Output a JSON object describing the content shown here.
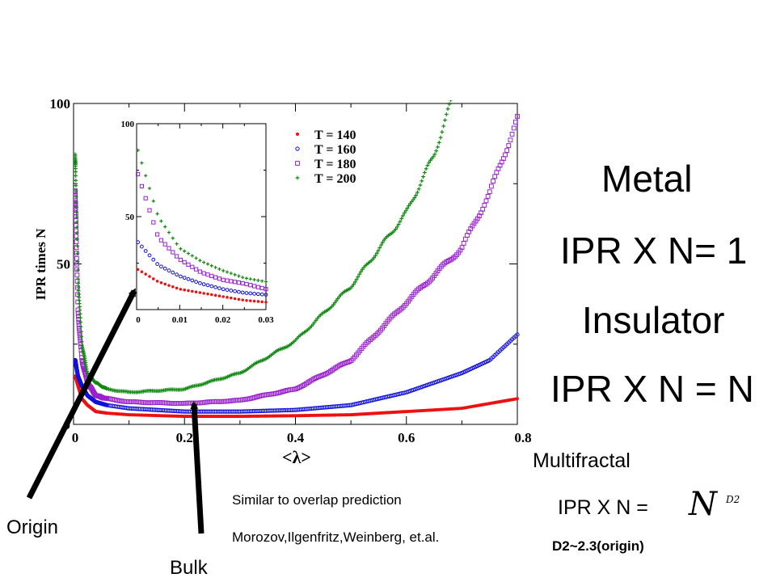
{
  "side_text": {
    "metal": "Metal",
    "metal_formula": "IPR X N= 1",
    "insulator": "Insulator",
    "insulator_formula": "IPR X N = N",
    "multifractal": "Multifractal",
    "multifractal_formula": "IPR X N =",
    "formula_base": "N",
    "formula_exponent": "D2",
    "d2_note": "D2~2.3(origin)",
    "overlap_line1": "Similar to overlap prediction",
    "overlap_line2": "Morozov,Ilgenfritz,Weinberg, et.al.",
    "origin_label": "Origin",
    "bulk_label": "Bulk"
  },
  "colors": {
    "T140": "#ee1111",
    "T160": "#1111dd",
    "T180": "#9922cc",
    "T200": "#118811"
  },
  "chart_data": [
    {
      "type": "scatter",
      "xlabel": "<λ>",
      "ylabel": "IPR times N",
      "xlim": [
        0,
        0.8
      ],
      "ylim": [
        0,
        100
      ],
      "x_ticks": [
        "0",
        "0.2",
        "0.4",
        "0.6",
        "0.8"
      ],
      "y_ticks": [
        "0",
        "50",
        "100"
      ],
      "legend_position": "inset top-right",
      "series": [
        {
          "name": "T = 140",
          "marker": "filled-circle",
          "color": "#ee1111",
          "points": [
            [
              0.003,
              15
            ],
            [
              0.008,
              12
            ],
            [
              0.015,
              8
            ],
            [
              0.025,
              6
            ],
            [
              0.04,
              4
            ],
            [
              0.06,
              3.5
            ],
            [
              0.1,
              3
            ],
            [
              0.2,
              2.5
            ],
            [
              0.3,
              2.5
            ],
            [
              0.4,
              2.7
            ],
            [
              0.5,
              3
            ],
            [
              0.6,
              4
            ],
            [
              0.7,
              5
            ],
            [
              0.8,
              8
            ]
          ]
        },
        {
          "name": "T = 160",
          "marker": "open-circle",
          "color": "#1111dd",
          "points": [
            [
              0.003,
              20
            ],
            [
              0.008,
              15
            ],
            [
              0.015,
              12
            ],
            [
              0.025,
              9
            ],
            [
              0.04,
              7
            ],
            [
              0.06,
              6
            ],
            [
              0.1,
              5
            ],
            [
              0.2,
              4
            ],
            [
              0.3,
              4
            ],
            [
              0.4,
              4.5
            ],
            [
              0.5,
              6
            ],
            [
              0.6,
              10
            ],
            [
              0.7,
              16
            ],
            [
              0.75,
              20
            ],
            [
              0.8,
              28
            ]
          ]
        },
        {
          "name": "T = 180",
          "marker": "open-square",
          "color": "#9922cc",
          "points": [
            [
              0.003,
              72
            ],
            [
              0.008,
              35
            ],
            [
              0.015,
              20
            ],
            [
              0.025,
              13
            ],
            [
              0.04,
              9
            ],
            [
              0.06,
              8
            ],
            [
              0.1,
              7
            ],
            [
              0.2,
              6.5
            ],
            [
              0.3,
              7.5
            ],
            [
              0.4,
              11
            ],
            [
              0.5,
              20
            ],
            [
              0.6,
              38
            ],
            [
              0.7,
              55
            ],
            [
              0.75,
              72
            ],
            [
              0.8,
              95
            ]
          ]
        },
        {
          "name": "T = 200",
          "marker": "plus",
          "color": "#118811",
          "points": [
            [
              0.003,
              84
            ],
            [
              0.008,
              45
            ],
            [
              0.015,
              25
            ],
            [
              0.025,
              16
            ],
            [
              0.04,
              13
            ],
            [
              0.06,
              11
            ],
            [
              0.1,
              10
            ],
            [
              0.2,
              11
            ],
            [
              0.3,
              16
            ],
            [
              0.4,
              26
            ],
            [
              0.5,
              43
            ],
            [
              0.6,
              66
            ],
            [
              0.65,
              84
            ],
            [
              0.68,
              100
            ]
          ]
        }
      ]
    },
    {
      "type": "scatter",
      "inset": true,
      "xlim": [
        0,
        0.03
      ],
      "ylim": [
        0,
        100
      ],
      "x_ticks": [
        "0",
        "0.01",
        "0.02",
        "0.03"
      ],
      "y_ticks": [
        "50",
        "100"
      ],
      "series": [
        {
          "name": "T = 140",
          "color": "#ee1111",
          "points": [
            [
              0,
              22
            ],
            [
              0.005,
              15
            ],
            [
              0.01,
              11
            ],
            [
              0.015,
              9
            ],
            [
              0.02,
              7
            ],
            [
              0.025,
              5
            ],
            [
              0.03,
              4
            ]
          ]
        },
        {
          "name": "T = 160",
          "color": "#1111dd",
          "points": [
            [
              0,
              37
            ],
            [
              0.005,
              24
            ],
            [
              0.01,
              18
            ],
            [
              0.015,
              14
            ],
            [
              0.02,
              11
            ],
            [
              0.025,
              9
            ],
            [
              0.03,
              8
            ]
          ]
        },
        {
          "name": "T = 180",
          "color": "#9922cc",
          "points": [
            [
              0,
              75
            ],
            [
              0.005,
              39
            ],
            [
              0.01,
              27
            ],
            [
              0.015,
              20
            ],
            [
              0.02,
              16
            ],
            [
              0.025,
              14
            ],
            [
              0.03,
              11
            ]
          ]
        },
        {
          "name": "T = 200",
          "color": "#118811",
          "points": [
            [
              0,
              88
            ],
            [
              0.005,
              50
            ],
            [
              0.01,
              33
            ],
            [
              0.015,
              26
            ],
            [
              0.02,
              21
            ],
            [
              0.025,
              17
            ],
            [
              0.03,
              15
            ]
          ]
        }
      ]
    }
  ]
}
